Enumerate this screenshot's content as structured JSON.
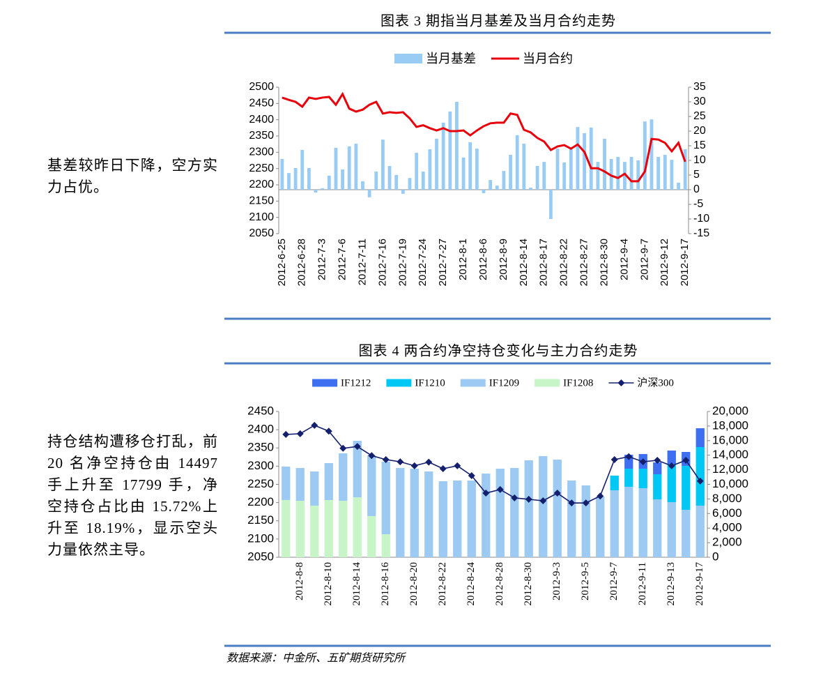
{
  "side_notes": [
    "基差较昨日下降，空方实力占优。",
    "持仓结构遭移仓打乱，前 20 名净空持仓由 14497 手上升至 17799 手，净空持仓占比由 15.72%上升至 18.19%，显示空头力量依然主导。"
  ],
  "source": "数据来源：中金所、五矿期货研究所",
  "chart_data": [
    {
      "type": "combo",
      "title": "图表 3  期指当月基差及当月合约走势",
      "categories": [
        "2012-6-25",
        null,
        null,
        "2012-6-28",
        null,
        null,
        "2012-7-3",
        null,
        null,
        "2012-7-6",
        null,
        null,
        "2012-7-11",
        null,
        null,
        "2012-7-16",
        null,
        null,
        "2012-7-19",
        null,
        null,
        "2012-7-24",
        null,
        null,
        "2012-7-27",
        null,
        null,
        "2012-8-1",
        null,
        null,
        "2012-8-6",
        null,
        null,
        "2012-8-9",
        null,
        null,
        "2012-8-14",
        null,
        null,
        "2012-8-17",
        null,
        null,
        "2012-8-22",
        null,
        null,
        "2012-8-27",
        null,
        null,
        "2012-8-30",
        null,
        null,
        "2012-9-4",
        null,
        null,
        "2012-9-7",
        null,
        null,
        "2012-9-12",
        null,
        null,
        "2012-9-17"
      ],
      "series": [
        {
          "name": "当月基差",
          "type": "bar",
          "axis": "y2",
          "color": "#99ccf5",
          "values": [
            10.5,
            5.7,
            7.4,
            13.6,
            7.4,
            -1,
            0.5,
            4.8,
            14.3,
            6.9,
            14.8,
            15.7,
            2.9,
            -2.6,
            6.2,
            17.1,
            8.1,
            5,
            -1.4,
            4,
            12.6,
            6.2,
            13.8,
            17.4,
            22.9,
            26.7,
            30,
            11,
            16.2,
            14,
            -1.2,
            3.3,
            1.4,
            6.4,
            11.9,
            18.6,
            15.7,
            0.7,
            8.1,
            9.5,
            -10,
            14,
            9.3,
            14,
            21.4,
            19.3,
            21.2,
            9.5,
            17.4,
            10.5,
            11.2,
            9.5,
            11.2,
            10,
            23.3,
            24,
            11.2,
            11.9,
            10.2,
            2.4,
            13.8
          ]
        },
        {
          "name": "当月合约",
          "type": "line",
          "color": "#e8000b",
          "values": [
            2468,
            2461,
            2455,
            2440,
            2468,
            2464,
            2468,
            2470,
            2446,
            2479,
            2434,
            2425,
            2431,
            2446,
            2455,
            2419,
            2423,
            2421,
            2423,
            2404,
            2378,
            2383,
            2374,
            2367,
            2374,
            2365,
            2365,
            2367,
            2352,
            2367,
            2380,
            2389,
            2391,
            2391,
            2419,
            2415,
            2369,
            2361,
            2344,
            2333,
            2307,
            2318,
            2322,
            2311,
            2324,
            2301,
            2251,
            2251,
            2241,
            2228,
            2221,
            2234,
            2211,
            2211,
            2241,
            2341,
            2339,
            2329,
            2303,
            2329,
            2271
          ]
        }
      ],
      "ylim": [
        2050,
        2500
      ],
      "yticks": [
        2050,
        2100,
        2150,
        2200,
        2250,
        2300,
        2350,
        2400,
        2450,
        2500
      ],
      "y2lim": [
        -15,
        35
      ],
      "y2ticks": [
        -15,
        -10,
        -5,
        0,
        5,
        10,
        15,
        20,
        25,
        30,
        35
      ],
      "legend": "top",
      "grid": false
    },
    {
      "type": "combo",
      "title": "图表 4  两合约净空持仓变化与主力合约走势",
      "stacked": true,
      "categories": [
        null,
        "2012-8-8",
        null,
        "2012-8-10",
        null,
        "2012-8-14",
        null,
        "2012-8-16",
        null,
        "2012-8-20",
        null,
        "2012-8-22",
        null,
        "2012-8-24",
        null,
        "2012-8-28",
        null,
        "2012-8-30",
        null,
        "2012-9-3",
        null,
        "2012-9-5",
        null,
        "2012-9-7",
        null,
        "2012-9-11",
        null,
        "2012-9-13",
        null,
        "2012-9-17"
      ],
      "series": [
        {
          "name": "IF1212",
          "type": "bar",
          "axis": "y2",
          "color": "#3d6ff0",
          "values": [
            null,
            null,
            null,
            null,
            null,
            null,
            null,
            null,
            null,
            null,
            null,
            null,
            null,
            null,
            null,
            null,
            null,
            null,
            null,
            null,
            null,
            null,
            null,
            null,
            1920,
            2010,
            1620,
            1820,
            1910,
            2580
          ]
        },
        {
          "name": "IF1210",
          "type": "bar",
          "axis": "y2",
          "color": "#00c8f5",
          "values": [
            null,
            null,
            null,
            null,
            null,
            null,
            null,
            null,
            null,
            null,
            null,
            null,
            null,
            null,
            null,
            null,
            null,
            null,
            null,
            null,
            null,
            null,
            null,
            2010,
            2480,
            2680,
            3450,
            5260,
            6030,
            8040
          ]
        },
        {
          "name": "IF1209",
          "type": "bar",
          "axis": "y2",
          "color": "#9ccaf2",
          "values": [
            4590,
            4500,
            4690,
            5070,
            6510,
            7750,
            8320,
            9950,
            12250,
            12150,
            11770,
            10430,
            10530,
            10530,
            11480,
            12150,
            12250,
            13300,
            13880,
            13400,
            10530,
            9860,
            8330,
            9190,
            9670,
            9470,
            7940,
            7560,
            6510,
            7080
          ]
        },
        {
          "name": "IF1208",
          "type": "bar",
          "axis": "y2",
          "color": "#c8f5c8",
          "values": [
            7850,
            7750,
            7080,
            7850,
            7750,
            8230,
            5650,
            3160,
            null,
            null,
            null,
            null,
            null,
            null,
            null,
            null,
            null,
            null,
            null,
            null,
            null,
            null,
            null,
            null,
            null,
            null,
            null,
            null,
            null,
            null
          ]
        },
        {
          "name": "沪深300",
          "type": "line",
          "color": "#14206e",
          "marker": "diamond",
          "values": [
            2387,
            2389,
            2412,
            2396,
            2349,
            2354,
            2329,
            2318,
            2312,
            2301,
            2311,
            2293,
            2301,
            2274,
            2226,
            2236,
            2213,
            2209,
            2205,
            2226,
            2199,
            2199,
            2218,
            2318,
            2326,
            2312,
            2316,
            2301,
            2316,
            2259
          ]
        }
      ],
      "ylim": [
        2050,
        2450
      ],
      "yticks": [
        2050,
        2100,
        2150,
        2200,
        2250,
        2300,
        2350,
        2400,
        2450
      ],
      "y2lim": [
        0,
        20000
      ],
      "y2ticks": [
        0,
        {
          "value": 2000,
          "label": "2,000"
        },
        {
          "value": 4000,
          "label": "4,000"
        },
        {
          "value": 6000,
          "label": "6,000"
        },
        {
          "value": 8000,
          "label": "8,000"
        },
        {
          "value": 10000,
          "label": "10,000"
        },
        {
          "value": 12000,
          "label": "12,000"
        },
        {
          "value": 14000,
          "label": "14,000"
        },
        {
          "value": 16000,
          "label": "16,000"
        },
        {
          "value": 18000,
          "label": "18,000"
        },
        {
          "value": 20000,
          "label": "20,000"
        }
      ],
      "legend": "top",
      "grid": false
    }
  ]
}
